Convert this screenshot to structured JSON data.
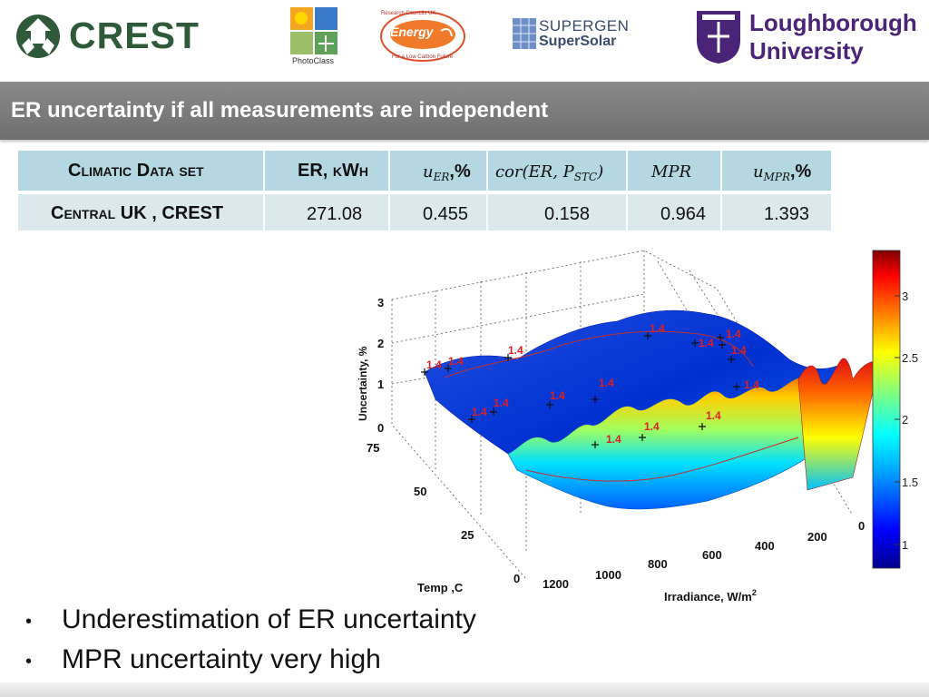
{
  "logos": {
    "crest": "CREST",
    "photoclass": "PhotoClass",
    "energy": "Energy",
    "energy_top": "Research Councils UK",
    "energy_bottom": "For a Low Carbon Future",
    "supergen_line1": "SUPERGEN",
    "supergen_line2": "SuperSolar",
    "university_line1": "Loughborough",
    "university_line2": "University"
  },
  "title": "ER uncertainty if all measurements are independent",
  "table": {
    "headers": {
      "dataset": "Climatic Data set",
      "er": "ER, kWh",
      "u_er_sym": "u",
      "u_er_sub": "ER",
      "u_er_unit": ",%",
      "cor": "cor(ER, P",
      "cor_sub": "STC",
      "cor_end": ")",
      "mpr": "MPR",
      "u_mpr_sym": "u",
      "u_mpr_sub": "MPR",
      "u_mpr_unit": ",%"
    },
    "row": {
      "dataset": "Central UK , CREST",
      "er": "271.08",
      "u_er": "0.455",
      "cor": "0.158",
      "mpr": "0.964",
      "u_mpr": "1.393"
    }
  },
  "chart": {
    "z_label": "Uncertainty, %",
    "x_label": "Temp ,C",
    "y_label": "Irradiance, W/m",
    "y_label_sup": "2",
    "z_ticks": [
      "0",
      "1",
      "2",
      "3"
    ],
    "temp_ticks": [
      "75",
      "50",
      "25",
      "0"
    ],
    "irr_ticks": [
      "1200",
      "1000",
      "800",
      "600",
      "400",
      "200",
      "0"
    ],
    "colorbar_ticks": [
      "3",
      "2.5",
      "2",
      "1.5",
      "1"
    ],
    "contour_label": "1.4",
    "colormap": [
      "#00008f",
      "#0000ff",
      "#00a0ff",
      "#00ffff",
      "#80ff80",
      "#ffff00",
      "#ff8000",
      "#ff0000",
      "#800000"
    ]
  },
  "chart_data": {
    "type": "surface",
    "xlabel": "Temp ,C",
    "ylabel": "Irradiance, W/m2",
    "zlabel": "Uncertainty, %",
    "xlim": [
      0,
      75
    ],
    "ylim": [
      0,
      1200
    ],
    "zlim": [
      0,
      3
    ],
    "colorbar_range": [
      0.8,
      3.4
    ],
    "contour_level": 1.4
  },
  "bullets": [
    "Underestimation of ER uncertainty",
    "MPR uncertainty very high"
  ]
}
